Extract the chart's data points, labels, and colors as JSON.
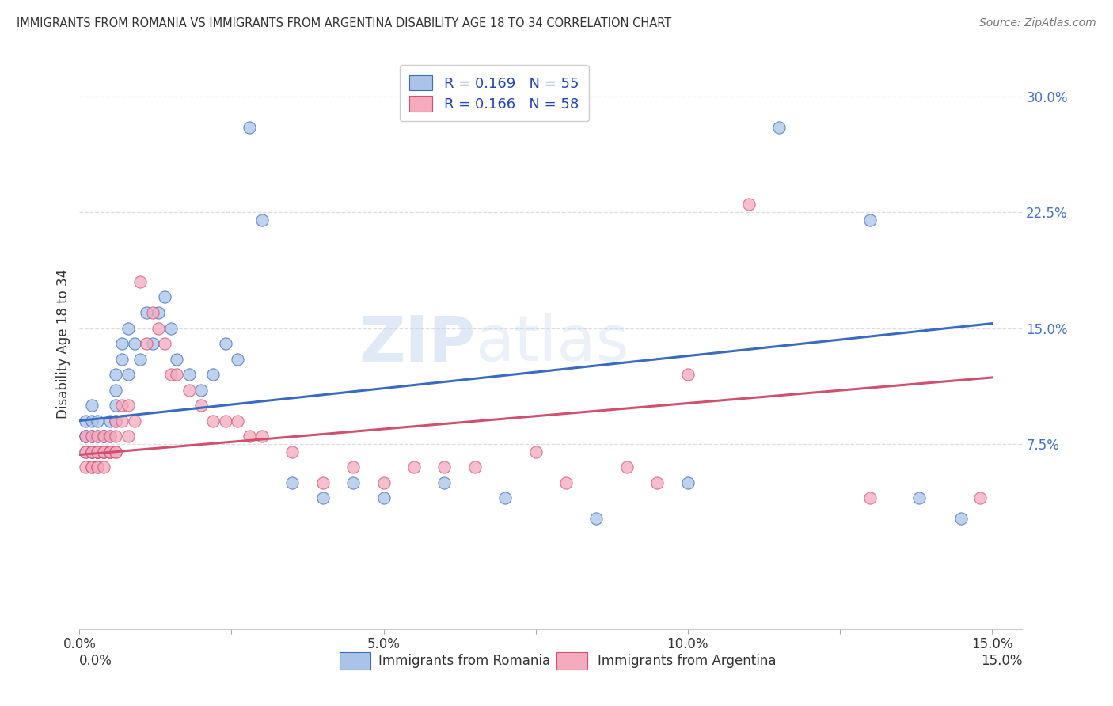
{
  "title": "IMMIGRANTS FROM ROMANIA VS IMMIGRANTS FROM ARGENTINA DISABILITY AGE 18 TO 34 CORRELATION CHART",
  "source": "Source: ZipAtlas.com",
  "ylabel": "Disability Age 18 to 34",
  "legend_bottom": [
    "Immigrants from Romania",
    "Immigrants from Argentina"
  ],
  "romania_R": 0.169,
  "romania_N": 55,
  "argentina_R": 0.166,
  "argentina_N": 58,
  "romania_color": "#aac4e8",
  "argentina_color": "#f5aabe",
  "romania_line_color": "#3a6bbf",
  "argentina_line_color": "#d05070",
  "xlim": [
    0.0,
    0.155
  ],
  "ylim": [
    -0.045,
    0.325
  ],
  "ytick_vals": [
    0.075,
    0.15,
    0.225,
    0.3
  ],
  "ytick_labels": [
    "7.5%",
    "15.0%",
    "22.5%",
    "30.0%"
  ],
  "xtick_vals": [
    0.0,
    0.025,
    0.05,
    0.075,
    0.1,
    0.125,
    0.15
  ],
  "xtick_labels": [
    "0.0%",
    "",
    "5.0%",
    "",
    "10.0%",
    "",
    "15.0%"
  ],
  "romania_x": [
    0.001,
    0.001,
    0.001,
    0.001,
    0.002,
    0.002,
    0.002,
    0.002,
    0.002,
    0.003,
    0.003,
    0.003,
    0.003,
    0.003,
    0.004,
    0.004,
    0.004,
    0.005,
    0.005,
    0.005,
    0.006,
    0.006,
    0.006,
    0.006,
    0.007,
    0.007,
    0.008,
    0.008,
    0.009,
    0.01,
    0.011,
    0.012,
    0.013,
    0.014,
    0.015,
    0.016,
    0.018,
    0.02,
    0.022,
    0.024,
    0.026,
    0.028,
    0.03,
    0.035,
    0.04,
    0.045,
    0.05,
    0.06,
    0.07,
    0.085,
    0.1,
    0.115,
    0.13,
    0.138,
    0.145
  ],
  "romania_y": [
    0.07,
    0.08,
    0.08,
    0.09,
    0.07,
    0.08,
    0.08,
    0.09,
    0.1,
    0.07,
    0.08,
    0.07,
    0.09,
    0.07,
    0.08,
    0.08,
    0.07,
    0.07,
    0.08,
    0.09,
    0.1,
    0.11,
    0.12,
    0.09,
    0.13,
    0.14,
    0.12,
    0.15,
    0.14,
    0.13,
    0.16,
    0.14,
    0.16,
    0.17,
    0.15,
    0.13,
    0.12,
    0.11,
    0.12,
    0.14,
    0.13,
    0.28,
    0.22,
    0.05,
    0.04,
    0.05,
    0.04,
    0.05,
    0.04,
    0.027,
    0.05,
    0.28,
    0.22,
    0.04,
    0.027
  ],
  "argentina_x": [
    0.001,
    0.001,
    0.001,
    0.002,
    0.002,
    0.002,
    0.002,
    0.002,
    0.003,
    0.003,
    0.003,
    0.003,
    0.003,
    0.004,
    0.004,
    0.004,
    0.004,
    0.005,
    0.005,
    0.005,
    0.006,
    0.006,
    0.006,
    0.006,
    0.007,
    0.007,
    0.008,
    0.008,
    0.009,
    0.01,
    0.011,
    0.012,
    0.013,
    0.014,
    0.015,
    0.016,
    0.018,
    0.02,
    0.022,
    0.024,
    0.026,
    0.028,
    0.03,
    0.035,
    0.04,
    0.045,
    0.05,
    0.055,
    0.06,
    0.065,
    0.075,
    0.08,
    0.09,
    0.095,
    0.1,
    0.11,
    0.13,
    0.148
  ],
  "argentina_y": [
    0.06,
    0.07,
    0.08,
    0.06,
    0.07,
    0.07,
    0.08,
    0.06,
    0.06,
    0.07,
    0.07,
    0.06,
    0.08,
    0.07,
    0.07,
    0.08,
    0.06,
    0.07,
    0.07,
    0.08,
    0.07,
    0.07,
    0.08,
    0.09,
    0.09,
    0.1,
    0.1,
    0.08,
    0.09,
    0.18,
    0.14,
    0.16,
    0.15,
    0.14,
    0.12,
    0.12,
    0.11,
    0.1,
    0.09,
    0.09,
    0.09,
    0.08,
    0.08,
    0.07,
    0.05,
    0.06,
    0.05,
    0.06,
    0.06,
    0.06,
    0.07,
    0.05,
    0.06,
    0.05,
    0.12,
    0.23,
    0.04,
    0.04
  ],
  "rom_trend_start": 0.09,
  "rom_trend_end": 0.153,
  "arg_trend_start": 0.068,
  "arg_trend_end": 0.118,
  "watermark_zip": "ZIP",
  "watermark_atlas": "atlas",
  "tick_color": "#4472c4",
  "grid_color": "#dddddd",
  "background_color": "#ffffff"
}
